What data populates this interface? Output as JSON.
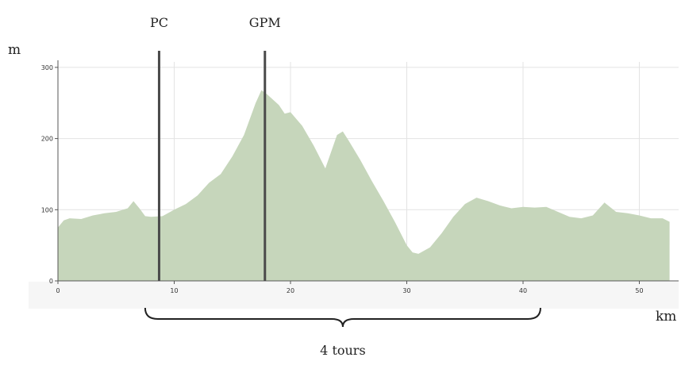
{
  "chart_data": {
    "type": "area",
    "xlabel": "km",
    "ylabel": "m",
    "xlim": [
      0,
      53
    ],
    "ylim": [
      0,
      300
    ],
    "xticks": [
      0,
      10,
      20,
      30,
      40,
      50
    ],
    "yticks": [
      0,
      100,
      200,
      300
    ],
    "grid": true,
    "fill_color": "#c6d6bb",
    "x": [
      0,
      0.5,
      1,
      2,
      3,
      4,
      5,
      6,
      6.5,
      7,
      7.5,
      8,
      9,
      10,
      11,
      12,
      13,
      14,
      15,
      16,
      17,
      17.5,
      18,
      19,
      19.5,
      20,
      21,
      22,
      23,
      24,
      24.5,
      25,
      26,
      27,
      28,
      29,
      30,
      30.5,
      31,
      32,
      33,
      34,
      35,
      36,
      37,
      38,
      39,
      40,
      41,
      42,
      43,
      44,
      45,
      46,
      47,
      48,
      49,
      50,
      51,
      52,
      52.6
    ],
    "elevation": [
      75,
      85,
      88,
      87,
      92,
      95,
      97,
      102,
      112,
      102,
      91,
      90,
      91,
      100,
      108,
      120,
      138,
      150,
      175,
      205,
      250,
      268,
      262,
      247,
      235,
      237,
      218,
      190,
      158,
      205,
      210,
      197,
      170,
      140,
      112,
      82,
      50,
      40,
      38,
      47,
      67,
      90,
      108,
      117,
      112,
      106,
      102,
      104,
      103,
      104,
      97,
      90,
      88,
      92,
      110,
      97,
      95,
      92,
      88,
      88,
      83
    ],
    "markers": [
      {
        "label": "PC",
        "x": 8.7
      },
      {
        "label": "GPM",
        "x": 17.8
      }
    ],
    "brace": {
      "label": "4 tours",
      "x_start": 7.5,
      "x_end": 41.5
    }
  }
}
